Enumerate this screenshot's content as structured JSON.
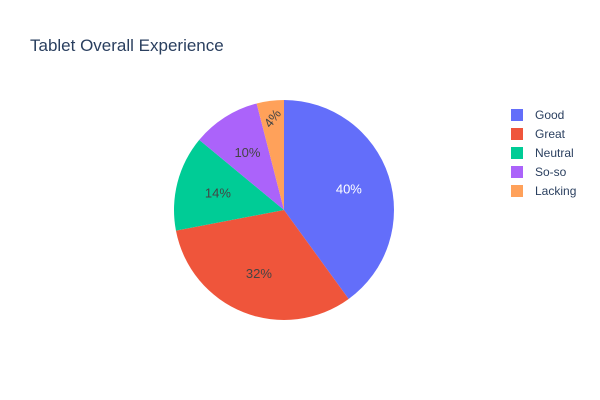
{
  "chart_data": {
    "type": "pie",
    "title": "Tablet Overall Experience",
    "labels": [
      "Good",
      "Great",
      "Neutral",
      "So-so",
      "Lacking"
    ],
    "values": [
      40,
      32,
      14,
      10,
      4
    ],
    "value_labels": [
      "40%",
      "32%",
      "14%",
      "10%",
      "4%"
    ],
    "colors": [
      "#636efa",
      "#ef553b",
      "#00cc96",
      "#ab63fa",
      "#ffa15a"
    ],
    "legend_placement": "right",
    "direction": "clockwise",
    "start": "top"
  }
}
